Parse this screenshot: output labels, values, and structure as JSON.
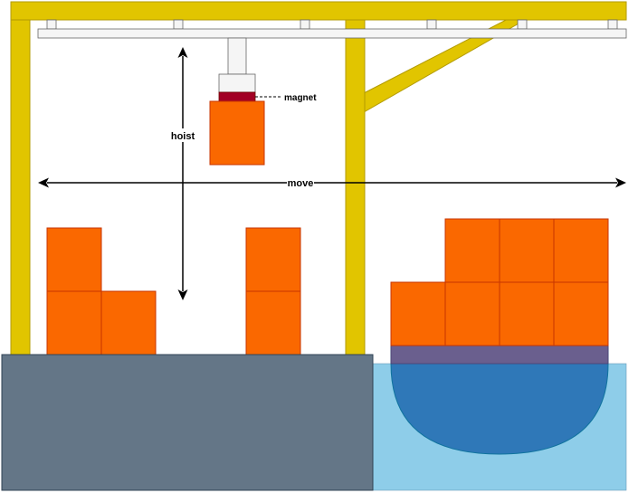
{
  "labels": {
    "magnet": "magnet",
    "hoist": "hoist",
    "move": "move"
  },
  "colors": {
    "crane": "#e1c500",
    "crane_stroke": "#b39b00",
    "container": "#fa6800",
    "container_stroke": "#c73500",
    "magnet": "#a20025",
    "trolley": "#f5f5f5",
    "rail": "#f5f5f5",
    "dock": "#647687",
    "water": "#8ecde9",
    "hull": "#2f78b8",
    "hull_band": "#6a5f8e",
    "arrow": "#000000"
  }
}
